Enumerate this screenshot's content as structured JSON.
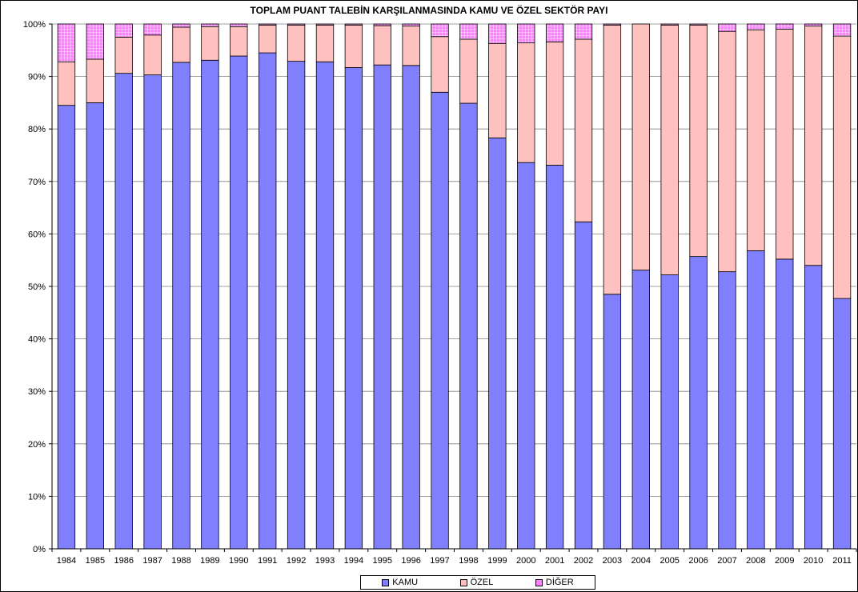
{
  "chart_data": {
    "type": "bar",
    "stacked": true,
    "title": "TOPLAM PUANT TALEBİN KARŞILANMASINDA KAMU VE ÖZEL SEKTÖR PAYI",
    "xlabel": "",
    "ylabel": "",
    "ylim": [
      0,
      100
    ],
    "yticks": [
      "0%",
      "10%",
      "20%",
      "30%",
      "40%",
      "50%",
      "60%",
      "70%",
      "80%",
      "90%",
      "100%"
    ],
    "grid": true,
    "legend_position": "bottom",
    "categories": [
      "1984",
      "1985",
      "1986",
      "1987",
      "1988",
      "1989",
      "1990",
      "1991",
      "1992",
      "1993",
      "1994",
      "1995",
      "1996",
      "1997",
      "1998",
      "1999",
      "2000",
      "2001",
      "2002",
      "2003",
      "2004",
      "2005",
      "2006",
      "2007",
      "2008",
      "2009",
      "2010",
      "2011"
    ],
    "series": [
      {
        "name": "KAMU",
        "color": "#8080ff",
        "values": [
          84.5,
          85.0,
          90.6,
          90.3,
          92.7,
          93.1,
          93.9,
          94.5,
          92.9,
          92.8,
          91.7,
          92.2,
          92.1,
          87.0,
          84.9,
          78.3,
          73.6,
          73.1,
          62.3,
          48.5,
          53.1,
          52.2,
          55.7,
          52.8,
          56.8,
          55.2,
          54.0,
          47.7
        ]
      },
      {
        "name": "ÖZEL",
        "color": "#ffc0c0",
        "values": [
          8.3,
          8.3,
          6.9,
          7.6,
          6.7,
          6.4,
          5.6,
          5.3,
          6.9,
          7.0,
          8.1,
          7.5,
          7.5,
          10.6,
          12.2,
          18.0,
          22.8,
          23.5,
          34.8,
          51.3,
          46.9,
          47.6,
          44.1,
          45.8,
          42.1,
          43.8,
          45.6,
          50.0
        ]
      },
      {
        "name": "DİĞER",
        "color": "#ff80ff",
        "values": [
          7.2,
          6.7,
          2.5,
          2.1,
          0.6,
          0.5,
          0.5,
          0.2,
          0.2,
          0.2,
          0.2,
          0.3,
          0.4,
          2.4,
          2.9,
          3.7,
          3.6,
          3.4,
          2.9,
          0.2,
          0.0,
          0.2,
          0.2,
          1.4,
          1.1,
          1.0,
          0.4,
          2.3
        ]
      }
    ]
  }
}
